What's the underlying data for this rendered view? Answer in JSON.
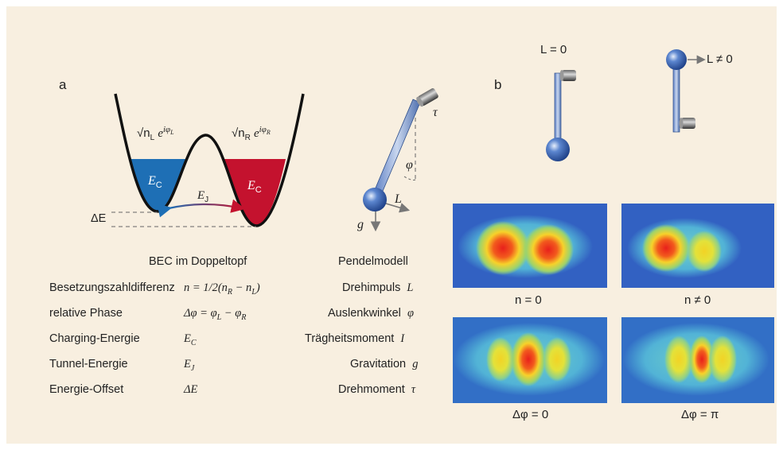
{
  "panel_labels": {
    "a": "a",
    "b": "b"
  },
  "well": {
    "left_amp_root": "√n",
    "left_amp_sub": "L",
    "left_amp_exp": "e",
    "left_amp_phase": "iφ",
    "left_amp_phase_sub": "L",
    "right_amp_root": "√n",
    "right_amp_sub": "R",
    "right_amp_exp": "e",
    "right_amp_phase": "iφ",
    "right_amp_phase_sub": "R",
    "left_energy": "E",
    "left_energy_sub": "C",
    "right_energy": "E",
    "right_energy_sub": "C",
    "tunnel": "E",
    "tunnel_sub": "J",
    "offset": "ΔE",
    "left_color": "#1e6fb5",
    "right_color": "#c4122e"
  },
  "pendulum": {
    "angle": "φ",
    "torque": "τ",
    "momentum": "L",
    "gravity": "g"
  },
  "table": {
    "bec_title": "BEC im Doppeltopf",
    "pend_title": "Pendelmodell",
    "rows": [
      {
        "name": "Besetzungszahldifferenz",
        "symbol": "n = 1/2(n",
        "symbol2": "R",
        "symbol3": " − n",
        "symbol4": "L",
        "symbol5": ")",
        "pend_name": "Drehimpuls",
        "pend_symbol": "L"
      },
      {
        "name": "relative Phase",
        "symbol": "Δφ = φ",
        "symbol2": "L",
        "symbol3": " − φ",
        "symbol4": "R",
        "pend_name": "Auslenkwinkel",
        "pend_symbol": "φ"
      },
      {
        "name": "Charging-Energie",
        "symbol": "E",
        "symbol2": "C",
        "pend_name": "Trägheitsmoment",
        "pend_symbol": "I"
      },
      {
        "name": "Tunnel-Energie",
        "symbol": "E",
        "symbol2": "J",
        "pend_name": "Gravitation",
        "pend_symbol": "g"
      },
      {
        "name": "Energie-Offset",
        "symbol": "ΔE",
        "pend_name": "Drehmoment",
        "pend_symbol": "τ"
      }
    ]
  },
  "panel_b": {
    "l_zero": "L = 0",
    "l_nonzero": "L ≠ 0",
    "captions": [
      "n = 0",
      "n ≠ 0",
      "Δφ = 0",
      "Δφ = π"
    ]
  }
}
